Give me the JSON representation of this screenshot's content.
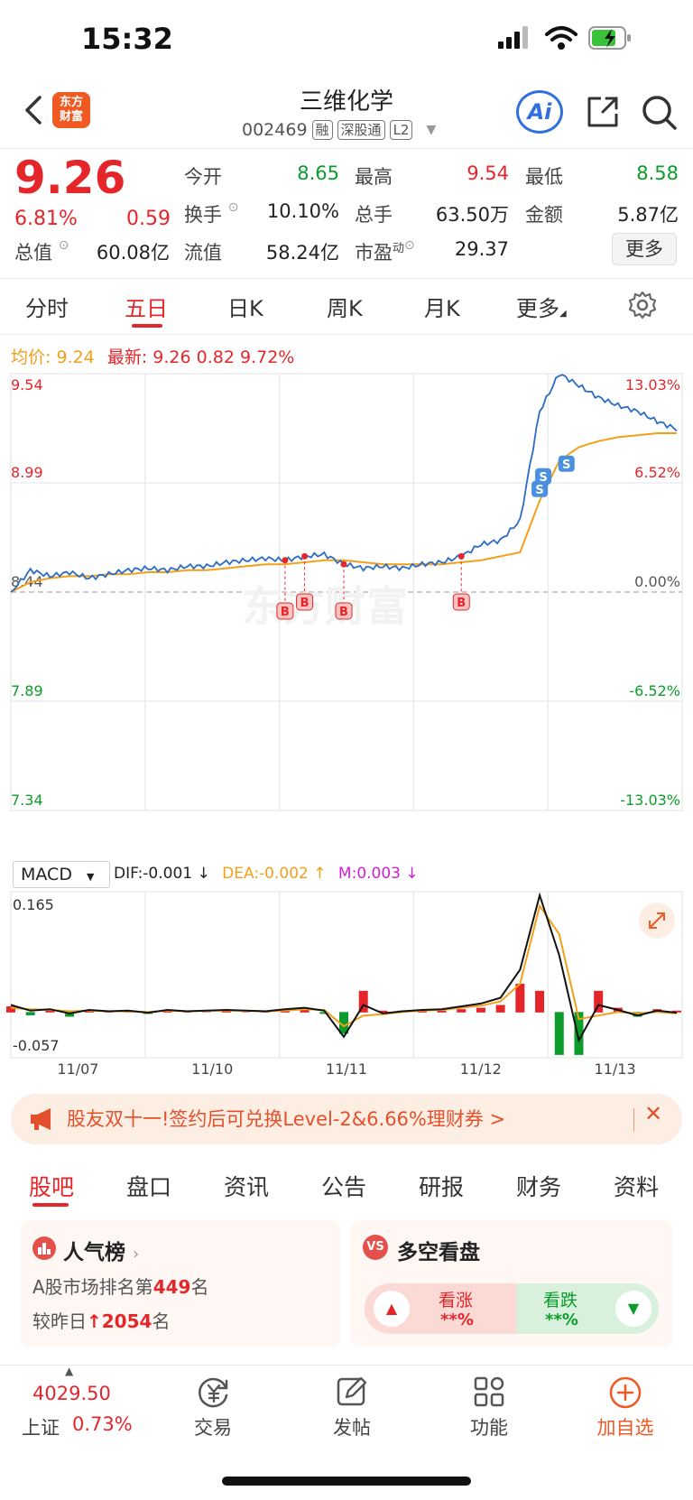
{
  "status": {
    "time": "15:32"
  },
  "header": {
    "logo_line1": "东方",
    "logo_line2": "财富",
    "name": "三维化学",
    "code": "002469",
    "tags": [
      "融",
      "深股通",
      "L2"
    ],
    "ai_label": "Ai"
  },
  "quote": {
    "price": "9.26",
    "pct": "6.81%",
    "chg": "0.59",
    "fields": [
      {
        "label": "今开",
        "value": "8.65",
        "color": "#0b9c2b"
      },
      {
        "label": "最高",
        "value": "9.54",
        "color": "#e4262b"
      },
      {
        "label": "最低",
        "value": "8.58",
        "color": "#0b9c2b"
      },
      {
        "label": "换手",
        "value": "10.10%",
        "color": "#222222"
      },
      {
        "label": "总手",
        "value": "63.50万",
        "color": "#222222"
      },
      {
        "label": "金额",
        "value": "5.87亿",
        "color": "#222222"
      },
      {
        "label": "总值",
        "value": "60.08亿",
        "color": "#222222"
      },
      {
        "label": "流值",
        "value": "58.24亿",
        "color": "#222222"
      },
      {
        "label": "市盈",
        "value": "29.37",
        "color": "#222222"
      }
    ],
    "pe_sup": "动",
    "more": "更多"
  },
  "chart_tabs": [
    "分时",
    "五日",
    "日K",
    "周K",
    "月K",
    "更多"
  ],
  "info": {
    "avg_label": "均价:",
    "avg_value": "9.24",
    "latest_label": "最新:",
    "latest_value": "9.26",
    "latest_chg": "0.82",
    "latest_pct": "9.72%"
  },
  "chart_data": {
    "type": "line",
    "series": [
      {
        "values": [
          8.44,
          8.55,
          8.52,
          8.54,
          8.51,
          8.53,
          8.55,
          8.56,
          8.55,
          8.57,
          8.57,
          8.59,
          8.6,
          8.61,
          8.6,
          8.62,
          8.63,
          8.58,
          8.56,
          8.57,
          8.56,
          8.58,
          8.59,
          8.62,
          8.68,
          8.7,
          8.8,
          9.35,
          9.54,
          9.48,
          9.42,
          9.38,
          9.35,
          9.3,
          9.26
        ]
      },
      {
        "values": [
          8.44,
          8.49,
          8.51,
          8.52,
          8.52,
          8.53,
          8.53,
          8.54,
          8.54,
          8.55,
          8.55,
          8.56,
          8.57,
          8.58,
          8.58,
          8.59,
          8.6,
          8.6,
          8.59,
          8.58,
          8.58,
          8.58,
          8.58,
          8.59,
          8.6,
          8.62,
          8.64,
          8.9,
          9.1,
          9.17,
          9.2,
          9.22,
          9.23,
          9.24,
          9.24
        ]
      }
    ],
    "ylim": [
      7.34,
      9.54
    ],
    "y_ticks_left": [
      "9.54",
      "8.99",
      "8.44",
      "7.89",
      "7.34"
    ],
    "y_ticks_right": [
      "13.03%",
      "6.52%",
      "0.00%",
      "-6.52%",
      "-13.03%"
    ],
    "x_labels": [
      "11/07",
      "11/10",
      "11/11",
      "11/12",
      "11/13"
    ],
    "trade_marks": [
      {
        "label": "B",
        "x_index": 14
      },
      {
        "label": "B",
        "x_index": 15
      },
      {
        "label": "B",
        "x_index": 17
      },
      {
        "label": "B",
        "x_index": 23
      },
      {
        "label": "S",
        "x_index": 27
      },
      {
        "label": "S",
        "x_index": 27
      },
      {
        "label": "S",
        "x_index": 28
      }
    ],
    "grid": true,
    "macd": {
      "label": "MACD",
      "dif": "DIF:-0.001",
      "dea": "DEA:-0.002",
      "m": "M:0.003",
      "ylim": [
        -0.057,
        0.165
      ],
      "top_label": "0.165",
      "bottom_label": "-0.057",
      "dif_values": [
        0.01,
        0.002,
        0.004,
        -0.002,
        0.003,
        0.001,
        0.002,
        -0.001,
        0.003,
        0.001,
        0.002,
        0.003,
        0.002,
        0.001,
        0.004,
        0.006,
        0.002,
        -0.035,
        0.01,
        -0.002,
        0.001,
        0.003,
        0.004,
        0.008,
        0.012,
        0.02,
        0.06,
        0.165,
        0.08,
        -0.04,
        0.01,
        0.003,
        -0.005,
        0.002,
        -0.001
      ],
      "dea_values": [
        0.006,
        0.004,
        0.003,
        0.001,
        0.002,
        0.001,
        0.001,
        0.0,
        0.002,
        0.001,
        0.002,
        0.002,
        0.002,
        0.001,
        0.002,
        0.004,
        0.003,
        -0.02,
        -0.005,
        -0.003,
        0.0,
        0.002,
        0.003,
        0.006,
        0.009,
        0.015,
        0.04,
        0.15,
        0.11,
        -0.01,
        -0.005,
        0.0,
        -0.002,
        0.0,
        -0.002
      ]
    }
  },
  "banner": {
    "text": "股友双十一!签约后可兑换Level-2&6.66%理财券 >",
    "close": "✕"
  },
  "content_tabs": [
    "股吧",
    "盘口",
    "资讯",
    "公告",
    "研报",
    "财务",
    "资料"
  ],
  "cards": {
    "popularity": {
      "title": "人气榜",
      "line1_pre": "A股市场排名第",
      "line1_num": "449",
      "line1_post": "名",
      "line2_pre": "较昨日",
      "line2_num": "2054",
      "line2_post": "名"
    },
    "bullbear": {
      "title": "多空看盘",
      "up_label": "看涨",
      "up_value": "**%",
      "down_label": "看跌",
      "down_value": "**%"
    }
  },
  "nav": {
    "index_value": "4029.50",
    "index_name": "上证",
    "index_pct": "0.73%",
    "items": [
      "交易",
      "发帖",
      "功能",
      "加自选"
    ]
  },
  "colors": {
    "red": "#e4262b",
    "green": "#0b9c2b",
    "blue": "#2b6cc4",
    "avg": "#f2a01a",
    "accent": "#f05a22"
  }
}
